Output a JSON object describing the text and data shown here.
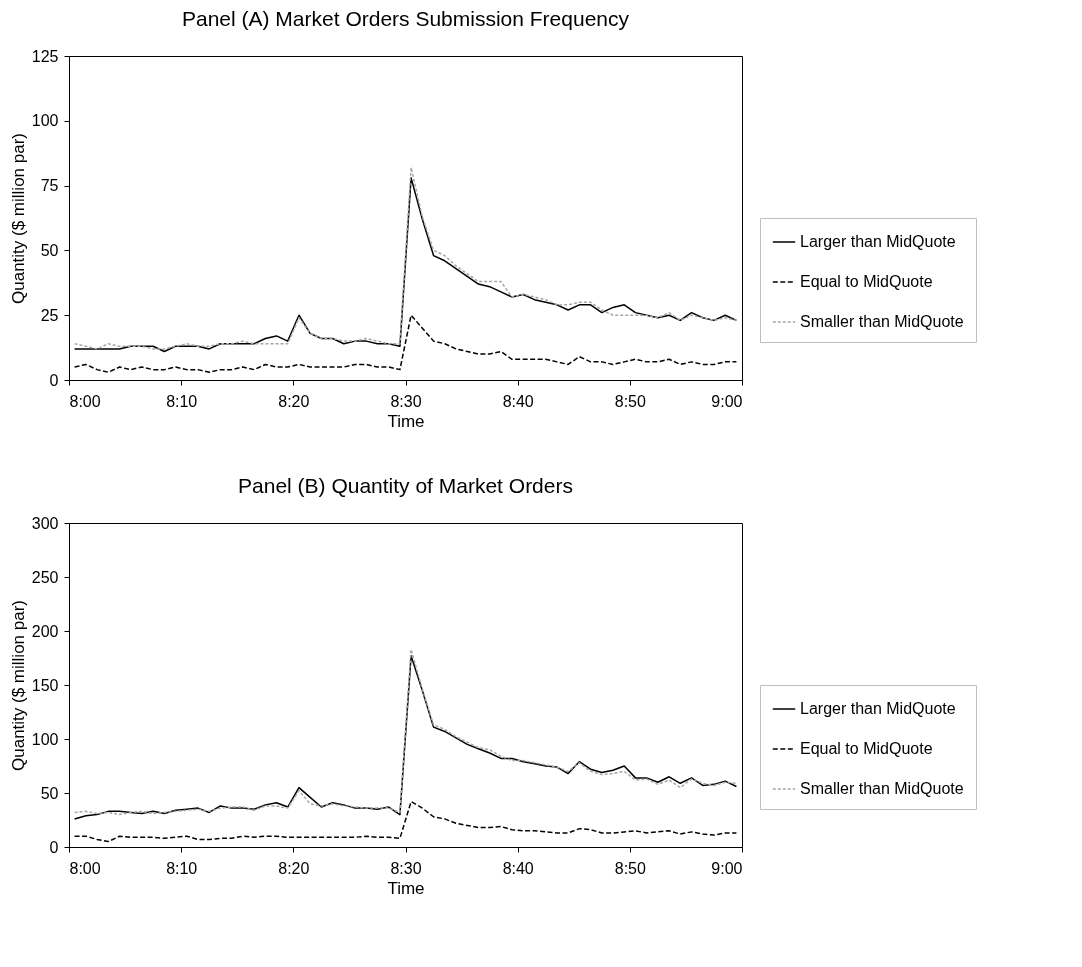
{
  "chart_data": [
    {
      "type": "line",
      "title": "Panel (A) Market Orders Submission Frequency",
      "xlabel": "Time",
      "ylabel": "Quantity ($ million par)",
      "x": [
        8.0083,
        8.025,
        8.0417,
        8.0583,
        8.075,
        8.0917,
        8.1083,
        8.125,
        8.1417,
        8.1583,
        8.175,
        8.1917,
        8.2083,
        8.225,
        8.2417,
        8.2583,
        8.275,
        8.2917,
        8.3083,
        8.325,
        8.3417,
        8.3583,
        8.375,
        8.3917,
        8.4083,
        8.425,
        8.4417,
        8.4583,
        8.475,
        8.4917,
        8.5083,
        8.525,
        8.5417,
        8.5583,
        8.575,
        8.5917,
        8.6083,
        8.625,
        8.6417,
        8.6583,
        8.675,
        8.6917,
        8.7083,
        8.725,
        8.7417,
        8.7583,
        8.775,
        8.7917,
        8.8083,
        8.825,
        8.8417,
        8.8583,
        8.875,
        8.8917,
        8.9083,
        8.925,
        8.9417,
        8.9583,
        8.975,
        8.9917
      ],
      "xlim": [
        8,
        9
      ],
      "xticks": [
        {
          "value": 8,
          "label": "8:00"
        },
        {
          "value": 8.1667,
          "label": "8:10"
        },
        {
          "value": 8.3333,
          "label": "8:20"
        },
        {
          "value": 8.5,
          "label": "8:30"
        },
        {
          "value": 8.6667,
          "label": "8:40"
        },
        {
          "value": 8.8333,
          "label": "8:50"
        },
        {
          "value": 9,
          "label": "9:00"
        }
      ],
      "ylim": [
        0,
        125
      ],
      "yticks": [
        0,
        25,
        50,
        75,
        100,
        125
      ],
      "grid": false,
      "legend": "right",
      "series": [
        {
          "name": "Larger than MidQuote",
          "color": "#000000",
          "line_style": "solid",
          "values": [
            12,
            12,
            12,
            12,
            12,
            13,
            13,
            13,
            11,
            13,
            13,
            13,
            12,
            14,
            14,
            14,
            14,
            16,
            17,
            15,
            25,
            18,
            16,
            16,
            14,
            15,
            15,
            14,
            14,
            13,
            78,
            62,
            48,
            46,
            43,
            40,
            37,
            36,
            34,
            32,
            33,
            31,
            30,
            29,
            27,
            29,
            29,
            26,
            28,
            29,
            26,
            25,
            24,
            25,
            23,
            26,
            24,
            23,
            25,
            23
          ]
        },
        {
          "name": "Equal to MidQuote",
          "color": "#000000",
          "line_style": "dashed",
          "values": [
            5,
            6,
            4,
            3,
            5,
            4,
            5,
            4,
            4,
            5,
            4,
            4,
            3,
            4,
            4,
            5,
            4,
            6,
            5,
            5,
            6,
            5,
            5,
            5,
            5,
            6,
            6,
            5,
            5,
            4,
            25,
            20,
            15,
            14,
            12,
            11,
            10,
            10,
            11,
            8,
            8,
            8,
            8,
            7,
            6,
            9,
            7,
            7,
            6,
            7,
            8,
            7,
            7,
            8,
            6,
            7,
            6,
            6,
            7,
            7
          ]
        },
        {
          "name": "Smaller than MidQuote",
          "color": "#a6a6a6",
          "line_style": "dotted",
          "values": [
            14,
            13,
            12,
            14,
            13,
            13,
            13,
            12,
            12,
            13,
            14,
            13,
            13,
            14,
            14,
            15,
            14,
            14,
            14,
            14,
            24,
            18,
            16,
            16,
            15,
            15,
            16,
            15,
            14,
            14,
            82,
            63,
            50,
            48,
            44,
            41,
            38,
            38,
            38,
            32,
            33,
            32,
            31,
            29,
            29,
            30,
            30,
            27,
            25,
            25,
            25,
            25,
            24,
            26,
            23,
            25,
            24,
            23,
            24,
            23
          ]
        }
      ]
    },
    {
      "type": "line",
      "title": "Panel (B) Quantity of Market Orders",
      "xlabel": "Time",
      "ylabel": "Quantity ($ million par)",
      "x": [
        8.0083,
        8.025,
        8.0417,
        8.0583,
        8.075,
        8.0917,
        8.1083,
        8.125,
        8.1417,
        8.1583,
        8.175,
        8.1917,
        8.2083,
        8.225,
        8.2417,
        8.2583,
        8.275,
        8.2917,
        8.3083,
        8.325,
        8.3417,
        8.3583,
        8.375,
        8.3917,
        8.4083,
        8.425,
        8.4417,
        8.4583,
        8.475,
        8.4917,
        8.5083,
        8.525,
        8.5417,
        8.5583,
        8.575,
        8.5917,
        8.6083,
        8.625,
        8.6417,
        8.6583,
        8.675,
        8.6917,
        8.7083,
        8.725,
        8.7417,
        8.7583,
        8.775,
        8.7917,
        8.8083,
        8.825,
        8.8417,
        8.8583,
        8.875,
        8.8917,
        8.9083,
        8.925,
        8.9417,
        8.9583,
        8.975,
        8.9917
      ],
      "xlim": [
        8,
        9
      ],
      "xticks": [
        {
          "value": 8,
          "label": "8:00"
        },
        {
          "value": 8.1667,
          "label": "8:10"
        },
        {
          "value": 8.3333,
          "label": "8:20"
        },
        {
          "value": 8.5,
          "label": "8:30"
        },
        {
          "value": 8.6667,
          "label": "8:40"
        },
        {
          "value": 8.8333,
          "label": "8:50"
        },
        {
          "value": 9,
          "label": "9:00"
        }
      ],
      "ylim": [
        0,
        300
      ],
      "yticks": [
        0,
        50,
        100,
        150,
        200,
        250,
        300
      ],
      "grid": false,
      "legend": "right",
      "series": [
        {
          "name": "Larger than MidQuote",
          "color": "#000000",
          "line_style": "solid",
          "values": [
            26,
            29,
            30,
            33,
            33,
            32,
            31,
            33,
            31,
            34,
            35,
            36,
            32,
            38,
            36,
            36,
            35,
            39,
            41,
            37,
            55,
            46,
            37,
            41,
            39,
            36,
            36,
            35,
            37,
            30,
            177,
            145,
            111,
            107,
            101,
            95,
            91,
            87,
            82,
            82,
            79,
            77,
            75,
            74,
            68,
            79,
            72,
            69,
            71,
            75,
            64,
            64,
            60,
            65,
            59,
            64,
            57,
            58,
            61,
            56
          ]
        },
        {
          "name": "Equal to MidQuote",
          "color": "#000000",
          "line_style": "dashed",
          "values": [
            10,
            10,
            7,
            5,
            10,
            9,
            9,
            9,
            8,
            9,
            10,
            7,
            7,
            8,
            8,
            10,
            9,
            10,
            10,
            9,
            9,
            9,
            9,
            9,
            9,
            9,
            10,
            9,
            9,
            8,
            42,
            36,
            28,
            26,
            22,
            20,
            18,
            18,
            19,
            16,
            15,
            15,
            14,
            13,
            13,
            17,
            16,
            13,
            13,
            14,
            15,
            13,
            14,
            15,
            12,
            14,
            12,
            11,
            13,
            13
          ]
        },
        {
          "name": "Smaller than MidQuote",
          "color": "#a6a6a6",
          "line_style": "dotted",
          "values": [
            32,
            33,
            31,
            32,
            30,
            32,
            33,
            31,
            32,
            33,
            34,
            35,
            33,
            36,
            37,
            37,
            34,
            38,
            38,
            36,
            52,
            40,
            38,
            40,
            38,
            37,
            36,
            36,
            36,
            32,
            183,
            146,
            113,
            109,
            102,
            97,
            92,
            90,
            84,
            80,
            80,
            78,
            76,
            74,
            70,
            78,
            70,
            67,
            68,
            70,
            62,
            63,
            58,
            62,
            55,
            63,
            59,
            57,
            60,
            59
          ]
        }
      ]
    }
  ]
}
